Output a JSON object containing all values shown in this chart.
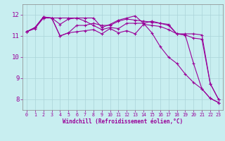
{
  "xlabel": "Windchill (Refroidissement éolien,°C)",
  "background_color": "#c8eef0",
  "grid_color": "#aad4d8",
  "line_color": "#990099",
  "xlim": [
    -0.5,
    23.5
  ],
  "ylim": [
    7.5,
    12.5
  ],
  "yticks": [
    8,
    9,
    10,
    11,
    12
  ],
  "xticks": [
    0,
    1,
    2,
    3,
    4,
    5,
    6,
    7,
    8,
    9,
    10,
    11,
    12,
    13,
    14,
    15,
    16,
    17,
    18,
    19,
    20,
    21,
    22,
    23
  ],
  "series": [
    {
      "x": [
        0,
        1,
        2,
        3,
        4,
        5,
        6,
        7,
        8,
        9,
        10,
        11,
        12,
        13,
        14,
        15,
        16,
        17,
        18,
        19,
        20,
        21,
        22,
        23
      ],
      "y": [
        11.2,
        11.4,
        11.9,
        11.85,
        11.0,
        11.15,
        11.2,
        11.25,
        11.3,
        11.1,
        11.35,
        11.15,
        11.25,
        11.1,
        11.55,
        11.5,
        11.45,
        11.3,
        11.1,
        11.05,
        10.9,
        10.85,
        8.75,
        8.0
      ]
    },
    {
      "x": [
        0,
        1,
        2,
        3,
        4,
        5,
        6,
        7,
        8,
        9,
        10,
        11,
        12,
        13,
        14,
        15,
        16,
        17,
        18,
        19,
        20,
        21,
        22,
        23
      ],
      "y": [
        11.2,
        11.4,
        11.9,
        11.85,
        11.0,
        11.15,
        11.5,
        11.5,
        11.6,
        11.5,
        11.5,
        11.7,
        11.8,
        11.75,
        11.7,
        11.65,
        11.6,
        11.5,
        11.1,
        11.1,
        11.1,
        11.05,
        8.75,
        8.0
      ]
    },
    {
      "x": [
        0,
        1,
        2,
        3,
        4,
        5,
        6,
        7,
        8,
        9,
        10,
        11,
        12,
        13,
        14,
        15,
        16,
        17,
        18,
        19,
        20,
        21,
        22,
        23
      ],
      "y": [
        11.2,
        11.4,
        11.85,
        11.85,
        11.55,
        11.8,
        11.85,
        11.85,
        11.85,
        11.4,
        11.55,
        11.75,
        11.85,
        11.95,
        11.6,
        11.15,
        10.5,
        10.0,
        9.7,
        9.2,
        8.8,
        8.5,
        8.05,
        7.85
      ]
    },
    {
      "x": [
        0,
        1,
        2,
        3,
        4,
        5,
        6,
        7,
        8,
        9,
        10,
        11,
        12,
        13,
        14,
        15,
        16,
        17,
        18,
        19,
        20,
        21,
        22,
        23
      ],
      "y": [
        11.2,
        11.35,
        11.85,
        11.85,
        11.85,
        11.85,
        11.85,
        11.7,
        11.5,
        11.3,
        11.4,
        11.35,
        11.6,
        11.6,
        11.6,
        11.7,
        11.6,
        11.55,
        11.1,
        11.05,
        9.7,
        8.5,
        8.05,
        7.85
      ]
    }
  ]
}
